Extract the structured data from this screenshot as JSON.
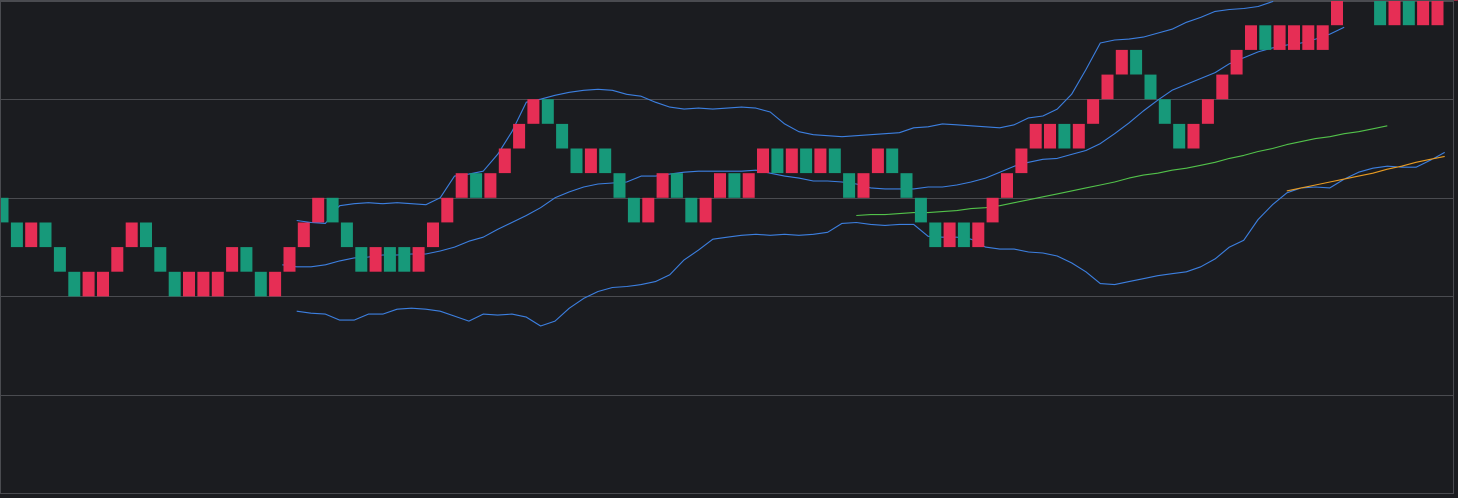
{
  "chart_data": {
    "type": "renko",
    "title": "",
    "xlabel": "",
    "ylabel": "",
    "grid": true,
    "grid_levels": [
      0,
      1,
      2,
      3,
      4,
      5
    ],
    "ylim": [
      0,
      5
    ],
    "brick_size": 0.25,
    "colors": {
      "background": "#1b1c20",
      "grid": "#4a4b50",
      "up": "#e62e55",
      "down": "#17997a",
      "bands": "#3c7fe0",
      "ma_green": "#52c24a",
      "ma_orange": "#e89b22"
    },
    "bricks": [
      {
        "dir": "down",
        "bottom": 1.75
      },
      {
        "dir": "down",
        "bottom": 1.5
      },
      {
        "dir": "up",
        "bottom": 1.5
      },
      {
        "dir": "down",
        "bottom": 1.5
      },
      {
        "dir": "down",
        "bottom": 1.25
      },
      {
        "dir": "down",
        "bottom": 1.0
      },
      {
        "dir": "up",
        "bottom": 1.0
      },
      {
        "dir": "up",
        "bottom": 1.0
      },
      {
        "dir": "up",
        "bottom": 1.25
      },
      {
        "dir": "up",
        "bottom": 1.5
      },
      {
        "dir": "down",
        "bottom": 1.5
      },
      {
        "dir": "down",
        "bottom": 1.25
      },
      {
        "dir": "down",
        "bottom": 1.0
      },
      {
        "dir": "up",
        "bottom": 1.0
      },
      {
        "dir": "up",
        "bottom": 1.0
      },
      {
        "dir": "up",
        "bottom": 1.0
      },
      {
        "dir": "up",
        "bottom": 1.25
      },
      {
        "dir": "down",
        "bottom": 1.25
      },
      {
        "dir": "down",
        "bottom": 1.0
      },
      {
        "dir": "up",
        "bottom": 1.0
      },
      {
        "dir": "up",
        "bottom": 1.25
      },
      {
        "dir": "up",
        "bottom": 1.5
      },
      {
        "dir": "up",
        "bottom": 1.75
      },
      {
        "dir": "down",
        "bottom": 1.75
      },
      {
        "dir": "down",
        "bottom": 1.5
      },
      {
        "dir": "down",
        "bottom": 1.25
      },
      {
        "dir": "up",
        "bottom": 1.25
      },
      {
        "dir": "down",
        "bottom": 1.25
      },
      {
        "dir": "down",
        "bottom": 1.25
      },
      {
        "dir": "up",
        "bottom": 1.25
      },
      {
        "dir": "up",
        "bottom": 1.5
      },
      {
        "dir": "up",
        "bottom": 1.75
      },
      {
        "dir": "up",
        "bottom": 2.0
      },
      {
        "dir": "down",
        "bottom": 2.0
      },
      {
        "dir": "up",
        "bottom": 2.0
      },
      {
        "dir": "up",
        "bottom": 2.25
      },
      {
        "dir": "up",
        "bottom": 2.5
      },
      {
        "dir": "up",
        "bottom": 2.75
      },
      {
        "dir": "down",
        "bottom": 2.75
      },
      {
        "dir": "down",
        "bottom": 2.5
      },
      {
        "dir": "down",
        "bottom": 2.25
      },
      {
        "dir": "up",
        "bottom": 2.25
      },
      {
        "dir": "down",
        "bottom": 2.25
      },
      {
        "dir": "down",
        "bottom": 2.0
      },
      {
        "dir": "down",
        "bottom": 1.75
      },
      {
        "dir": "up",
        "bottom": 1.75
      },
      {
        "dir": "up",
        "bottom": 2.0
      },
      {
        "dir": "down",
        "bottom": 2.0
      },
      {
        "dir": "down",
        "bottom": 1.75
      },
      {
        "dir": "up",
        "bottom": 1.75
      },
      {
        "dir": "up",
        "bottom": 2.0
      },
      {
        "dir": "down",
        "bottom": 2.0
      },
      {
        "dir": "up",
        "bottom": 2.0
      },
      {
        "dir": "up",
        "bottom": 2.25
      },
      {
        "dir": "down",
        "bottom": 2.25
      },
      {
        "dir": "up",
        "bottom": 2.25
      },
      {
        "dir": "down",
        "bottom": 2.25
      },
      {
        "dir": "up",
        "bottom": 2.25
      },
      {
        "dir": "down",
        "bottom": 2.25
      },
      {
        "dir": "down",
        "bottom": 2.0
      },
      {
        "dir": "up",
        "bottom": 2.0
      },
      {
        "dir": "up",
        "bottom": 2.25
      },
      {
        "dir": "down",
        "bottom": 2.25
      },
      {
        "dir": "down",
        "bottom": 2.0
      },
      {
        "dir": "down",
        "bottom": 1.75
      },
      {
        "dir": "down",
        "bottom": 1.5
      },
      {
        "dir": "up",
        "bottom": 1.5
      },
      {
        "dir": "down",
        "bottom": 1.5
      },
      {
        "dir": "up",
        "bottom": 1.5
      },
      {
        "dir": "up",
        "bottom": 1.75
      },
      {
        "dir": "up",
        "bottom": 2.0
      },
      {
        "dir": "up",
        "bottom": 2.25
      },
      {
        "dir": "up",
        "bottom": 2.5
      },
      {
        "dir": "up",
        "bottom": 2.5
      },
      {
        "dir": "down",
        "bottom": 2.5
      },
      {
        "dir": "up",
        "bottom": 2.5
      },
      {
        "dir": "up",
        "bottom": 2.75
      },
      {
        "dir": "up",
        "bottom": 3.0
      },
      {
        "dir": "up",
        "bottom": 3.25
      },
      {
        "dir": "down",
        "bottom": 3.25
      },
      {
        "dir": "down",
        "bottom": 3.0
      },
      {
        "dir": "down",
        "bottom": 2.75
      },
      {
        "dir": "down",
        "bottom": 2.5
      },
      {
        "dir": "up",
        "bottom": 2.5
      },
      {
        "dir": "up",
        "bottom": 2.75
      },
      {
        "dir": "up",
        "bottom": 3.0
      },
      {
        "dir": "up",
        "bottom": 3.25
      },
      {
        "dir": "up",
        "bottom": 3.5
      },
      {
        "dir": "down",
        "bottom": 3.5
      },
      {
        "dir": "up",
        "bottom": 3.5
      },
      {
        "dir": "up",
        "bottom": 3.5
      },
      {
        "dir": "up",
        "bottom": 3.5
      },
      {
        "dir": "up",
        "bottom": 3.5
      },
      {
        "dir": "up",
        "bottom": 3.75
      },
      {
        "dir": "up",
        "bottom": 4.0
      },
      {
        "dir": "down",
        "bottom": 4.0
      },
      {
        "dir": "down",
        "bottom": 3.75
      },
      {
        "dir": "up",
        "bottom": 3.75
      },
      {
        "dir": "down",
        "bottom": 3.75
      },
      {
        "dir": "up",
        "bottom": 3.75
      },
      {
        "dir": "up",
        "bottom": 3.75
      },
      {
        "dir": "up",
        "bottom": 4.0
      },
      {
        "dir": "down",
        "bottom": 4.0
      },
      {
        "dir": "down",
        "bottom": 3.75
      }
    ],
    "series": [
      {
        "key": "bb_upper",
        "x_offset": 20.5,
        "values": [
          1.77,
          1.75,
          1.74,
          1.92,
          1.94,
          1.95,
          1.94,
          1.95,
          1.94,
          1.93,
          2.0,
          2.22,
          2.24,
          2.27,
          2.44,
          2.67,
          2.97,
          3.0,
          3.04,
          3.07,
          3.09,
          3.1,
          3.09,
          3.05,
          3.03,
          2.97,
          2.92,
          2.9,
          2.91,
          2.9,
          2.91,
          2.92,
          2.91,
          2.87,
          2.75,
          2.67,
          2.64,
          2.63,
          2.62,
          2.63,
          2.64,
          2.65,
          2.66,
          2.71,
          2.72,
          2.75,
          2.74,
          2.73,
          2.72,
          2.71,
          2.74,
          2.81,
          2.83,
          2.9,
          3.05,
          3.3,
          3.57,
          3.6,
          3.61,
          3.63,
          3.67,
          3.71,
          3.78,
          3.83,
          3.89,
          3.91,
          3.92,
          3.94,
          3.99,
          4.23,
          4.25,
          4.29,
          4.36,
          4.42,
          4.47,
          4.54,
          4.58,
          4.57
        ]
      },
      {
        "key": "bb_middle",
        "x_offset": 19.5,
        "values": [
          1.32,
          1.3,
          1.3,
          1.32,
          1.36,
          1.39,
          1.4,
          1.42,
          1.42,
          1.43,
          1.43,
          1.46,
          1.5,
          1.56,
          1.6,
          1.68,
          1.75,
          1.82,
          1.9,
          2.0,
          2.06,
          2.11,
          2.14,
          2.15,
          2.16,
          2.22,
          2.22,
          2.24,
          2.26,
          2.27,
          2.27,
          2.27,
          2.27,
          2.28,
          2.25,
          2.22,
          2.2,
          2.17,
          2.17,
          2.16,
          2.14,
          2.1,
          2.09,
          2.09,
          2.09,
          2.11,
          2.11,
          2.13,
          2.16,
          2.2,
          2.26,
          2.32,
          2.36,
          2.39,
          2.4,
          2.44,
          2.48,
          2.55,
          2.65,
          2.76,
          2.88,
          2.99,
          3.09,
          3.15,
          3.21,
          3.27,
          3.36,
          3.42,
          3.48,
          3.52,
          3.55,
          3.57,
          3.61,
          3.66,
          3.73
        ]
      },
      {
        "key": "bb_lower",
        "x_offset": 20.5,
        "values": [
          0.85,
          0.83,
          0.82,
          0.76,
          0.76,
          0.82,
          0.82,
          0.87,
          0.88,
          0.87,
          0.85,
          0.8,
          0.75,
          0.82,
          0.81,
          0.82,
          0.79,
          0.7,
          0.75,
          0.88,
          0.98,
          1.05,
          1.09,
          1.1,
          1.12,
          1.15,
          1.22,
          1.37,
          1.47,
          1.58,
          1.6,
          1.62,
          1.63,
          1.62,
          1.63,
          1.62,
          1.63,
          1.65,
          1.74,
          1.75,
          1.73,
          1.72,
          1.73,
          1.73,
          1.61,
          1.6,
          1.6,
          1.58,
          1.5,
          1.48,
          1.48,
          1.45,
          1.44,
          1.41,
          1.34,
          1.25,
          1.13,
          1.12,
          1.15,
          1.18,
          1.21,
          1.23,
          1.25,
          1.3,
          1.38,
          1.5,
          1.57,
          1.78,
          1.93,
          2.05,
          2.1,
          2.11,
          2.1,
          2.19,
          2.26,
          2.3,
          2.32,
          2.31,
          2.31,
          2.38,
          2.46
        ]
      },
      {
        "key": "ma_green",
        "x_offset": 59.5,
        "values": [
          1.82,
          1.83,
          1.83,
          1.84,
          1.85,
          1.85,
          1.86,
          1.87,
          1.89,
          1.9,
          1.92,
          1.95,
          1.98,
          2.01,
          2.04,
          2.07,
          2.1,
          2.13,
          2.16,
          2.2,
          2.23,
          2.25,
          2.28,
          2.3,
          2.33,
          2.36,
          2.4,
          2.43,
          2.47,
          2.5,
          2.54,
          2.57,
          2.6,
          2.62,
          2.65,
          2.67,
          2.7,
          2.73
        ]
      },
      {
        "key": "ma_orange",
        "x_offset": 89.5,
        "values": [
          2.07,
          2.1,
          2.13,
          2.16,
          2.19,
          2.22,
          2.25,
          2.29,
          2.32,
          2.36,
          2.39,
          2.42
        ]
      }
    ]
  }
}
